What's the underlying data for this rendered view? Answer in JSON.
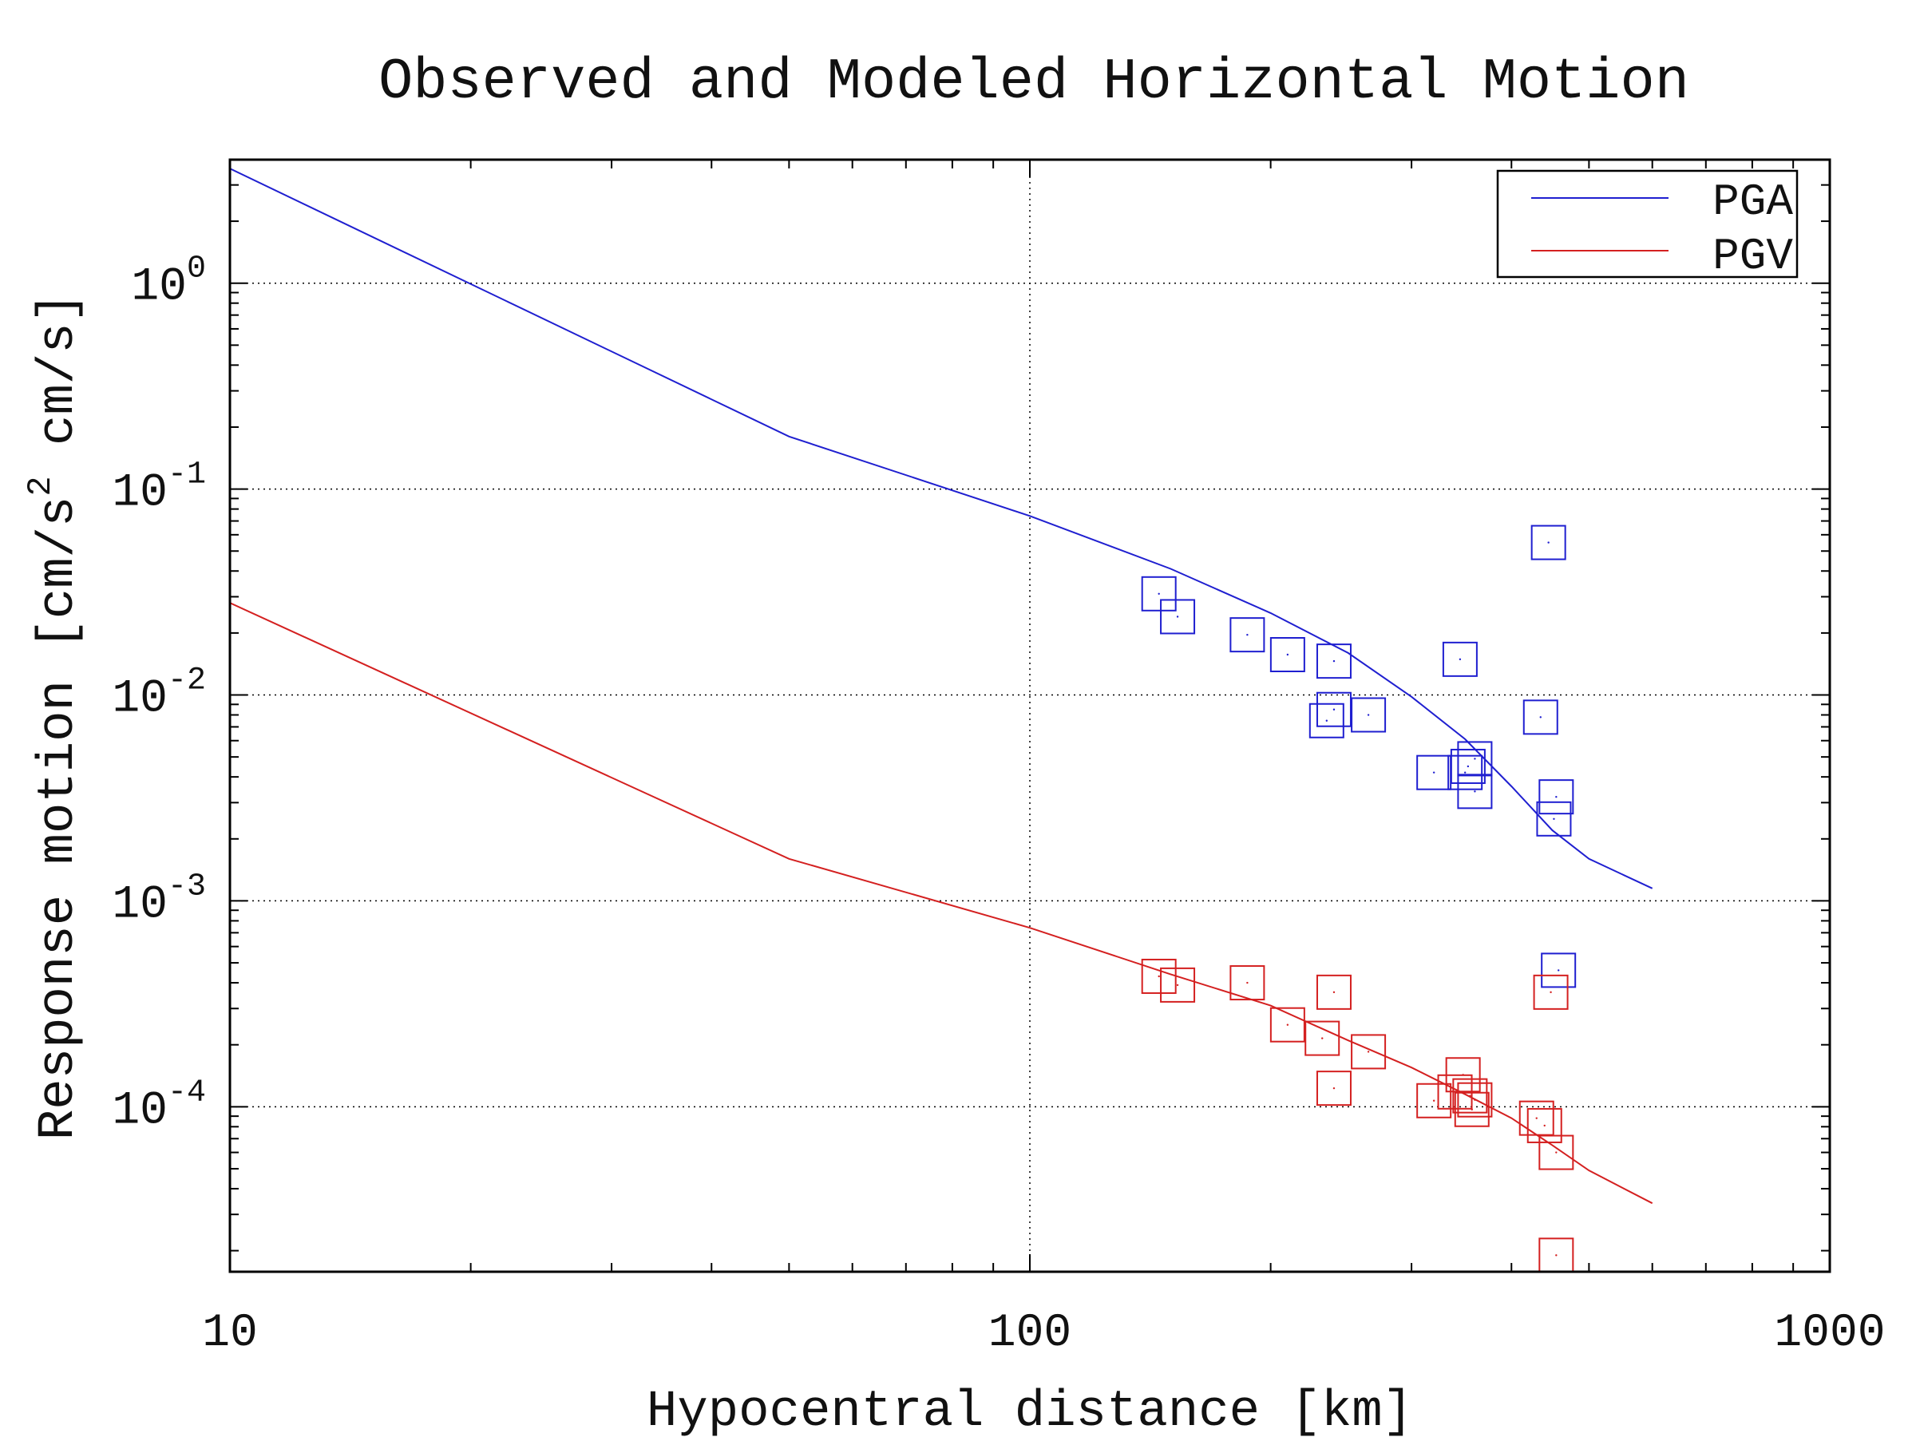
{
  "chart_data": {
    "type": "scatter",
    "title": "Observed and Modeled Horizontal Motion",
    "xlabel": "Hypocentral distance [km]",
    "ylabel": {
      "parts": [
        "Response motion  [cm/s",
        "2",
        "  cm/s]"
      ]
    },
    "x_scale": "log",
    "y_scale": "log",
    "xlim": [
      10,
      1000
    ],
    "ylim": [
      1.58e-05,
      3.98
    ],
    "x_ticks": [
      {
        "value": 10,
        "label": "10"
      },
      {
        "value": 100,
        "label": "100"
      },
      {
        "value": 1000,
        "label": "1000"
      }
    ],
    "y_ticks": [
      {
        "value": 1,
        "base": "10",
        "exp": "0"
      },
      {
        "value": 0.1,
        "base": "10",
        "exp": "-1"
      },
      {
        "value": 0.01,
        "base": "10",
        "exp": "-2"
      },
      {
        "value": 0.001,
        "base": "10",
        "exp": "-3"
      },
      {
        "value": 0.0001,
        "base": "10",
        "exp": "-4"
      }
    ],
    "grid": "dotted, at major ticks",
    "legend": {
      "position": "top-right",
      "entries": [
        {
          "label": "PGA",
          "color": "#1f1fd0"
        },
        {
          "label": "PGV",
          "color": "#d42020"
        }
      ]
    },
    "series": [
      {
        "name": "PGA",
        "kind": "line",
        "color": "#1f1fd0",
        "x": [
          10,
          50,
          100,
          150,
          200,
          250,
          300,
          350,
          400,
          450,
          500,
          600
        ],
        "y": [
          3.6,
          0.18,
          0.074,
          0.041,
          0.025,
          0.016,
          0.0098,
          0.0061,
          0.0036,
          0.0022,
          0.0016,
          0.00115
        ]
      },
      {
        "name": "PGV",
        "kind": "line",
        "color": "#d42020",
        "x": [
          10,
          50,
          100,
          150,
          200,
          250,
          300,
          350,
          400,
          450,
          500,
          600
        ],
        "y": [
          0.028,
          0.0016,
          0.00074,
          0.00044,
          0.00031,
          0.00021,
          0.000155,
          0.000115,
          8.8e-05,
          6.5e-05,
          4.9e-05,
          3.4e-05
        ]
      },
      {
        "name": "PGA",
        "kind": "markers",
        "marker": "square",
        "color": "#1f1fd0",
        "x": [
          145,
          153,
          187,
          210,
          240,
          240,
          235,
          265,
          320,
          350,
          353,
          360,
          360,
          345,
          435,
          445,
          455,
          452
        ],
        "y": [
          0.031,
          0.024,
          0.0196,
          0.0157,
          0.0146,
          0.0085,
          0.0075,
          0.008,
          0.0042,
          0.0042,
          0.0045,
          0.0049,
          0.0034,
          0.0149,
          0.0078,
          0.055,
          0.0032,
          0.0025
        ]
      },
      {
        "name": "PGA",
        "kind": "markers",
        "marker": "square",
        "color": "#1f1fd0",
        "x": [
          458
        ],
        "y": [
          0.00046
        ]
      },
      {
        "name": "PGV",
        "kind": "markers",
        "marker": "square",
        "color": "#d42020",
        "x": [
          145,
          153,
          187,
          210,
          240,
          232,
          240,
          265,
          320,
          340,
          348,
          355,
          357,
          360,
          430,
          440,
          455,
          448,
          455
        ],
        "y": [
          0.00043,
          0.00039,
          0.0004,
          0.00025,
          0.00036,
          0.000215,
          0.000123,
          0.000185,
          0.000107,
          0.000118,
          0.000143,
          0.000113,
          9.7e-05,
          0.000108,
          8.8e-05,
          8.1e-05,
          6e-05,
          0.00036,
          1.9e-05
        ]
      }
    ]
  }
}
